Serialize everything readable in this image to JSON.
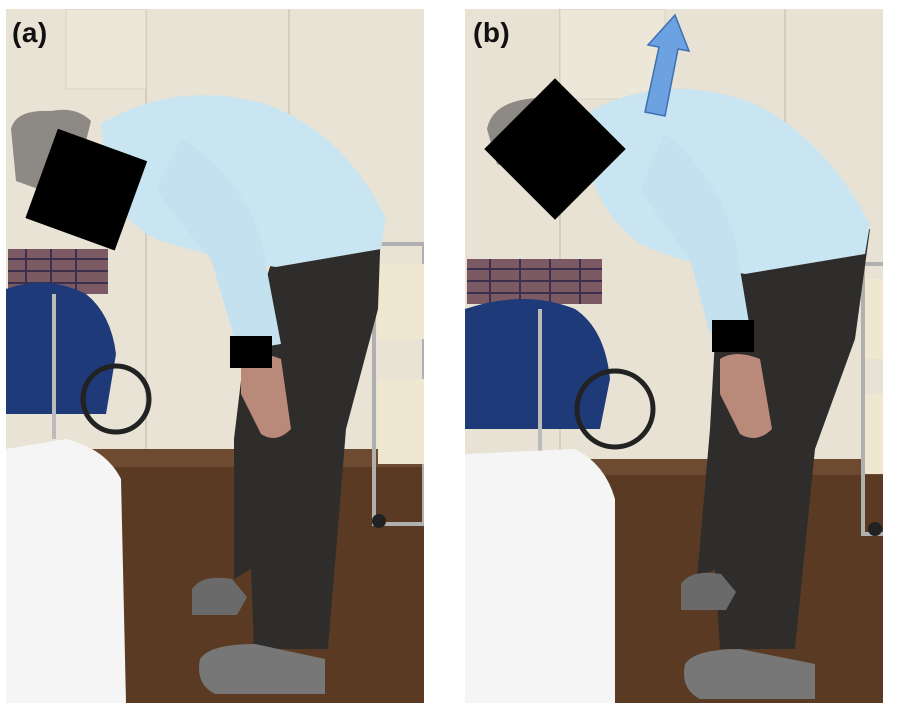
{
  "panels": [
    {
      "label": "(a)",
      "arrow": false
    },
    {
      "label": "(b)",
      "arrow": true
    }
  ],
  "colors": {
    "wall": "#e8e2d4",
    "floor": "#5b3a22",
    "sweater": "#c9e6f2",
    "pants": "#2f2e2c",
    "redaction": "#000000",
    "arrow": "#6ca2e2",
    "bed": "#f6f6f6"
  }
}
